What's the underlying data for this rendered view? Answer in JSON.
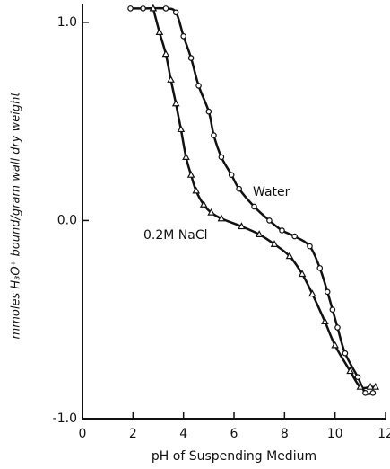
{
  "chart_data": {
    "type": "line",
    "x_label": "pH of Suspending Medium",
    "y_label": "mmoles H₃O⁺ bound/gram wall dry weight",
    "xlim": [
      0,
      12
    ],
    "xticks": [
      0,
      2,
      4,
      6,
      8,
      10,
      12
    ],
    "ylim": [
      -1.0,
      1.09
    ],
    "yticks": [
      {
        "value": 1.0,
        "label": "1.0"
      },
      {
        "value": 0.0,
        "label": "0.0"
      },
      {
        "value": -1.0,
        "label": "-1.0"
      }
    ],
    "series": [
      {
        "name": "Water",
        "color": "#111111",
        "marker": "circle",
        "x": [
          1.9,
          2.4,
          3.3,
          3.7,
          4.0,
          4.3,
          4.6,
          5.0,
          5.2,
          5.5,
          5.9,
          6.2,
          6.8,
          7.4,
          7.9,
          8.4,
          9.0,
          9.4,
          9.7,
          9.9,
          10.1,
          10.4,
          10.9,
          11.2,
          11.5
        ],
        "values": [
          1.07,
          1.07,
          1.07,
          1.05,
          0.93,
          0.82,
          0.68,
          0.55,
          0.43,
          0.32,
          0.23,
          0.16,
          0.07,
          0.0,
          -0.05,
          -0.08,
          -0.13,
          -0.24,
          -0.36,
          -0.45,
          -0.54,
          -0.67,
          -0.79,
          -0.87,
          -0.87
        ]
      },
      {
        "name": "0.2M NaCl",
        "color": "#111111",
        "marker": "triangle",
        "x": [
          2.8,
          3.05,
          3.3,
          3.5,
          3.7,
          3.9,
          4.1,
          4.3,
          4.5,
          4.8,
          5.1,
          5.5,
          6.3,
          7.0,
          7.6,
          8.2,
          8.7,
          9.1,
          9.6,
          10.0,
          10.6,
          11.0,
          11.4,
          11.6
        ],
        "values": [
          1.07,
          0.95,
          0.84,
          0.71,
          0.59,
          0.46,
          0.32,
          0.23,
          0.15,
          0.08,
          0.04,
          0.01,
          -0.03,
          -0.07,
          -0.12,
          -0.18,
          -0.27,
          -0.37,
          -0.51,
          -0.63,
          -0.76,
          -0.84,
          -0.84,
          -0.84
        ]
      }
    ]
  }
}
